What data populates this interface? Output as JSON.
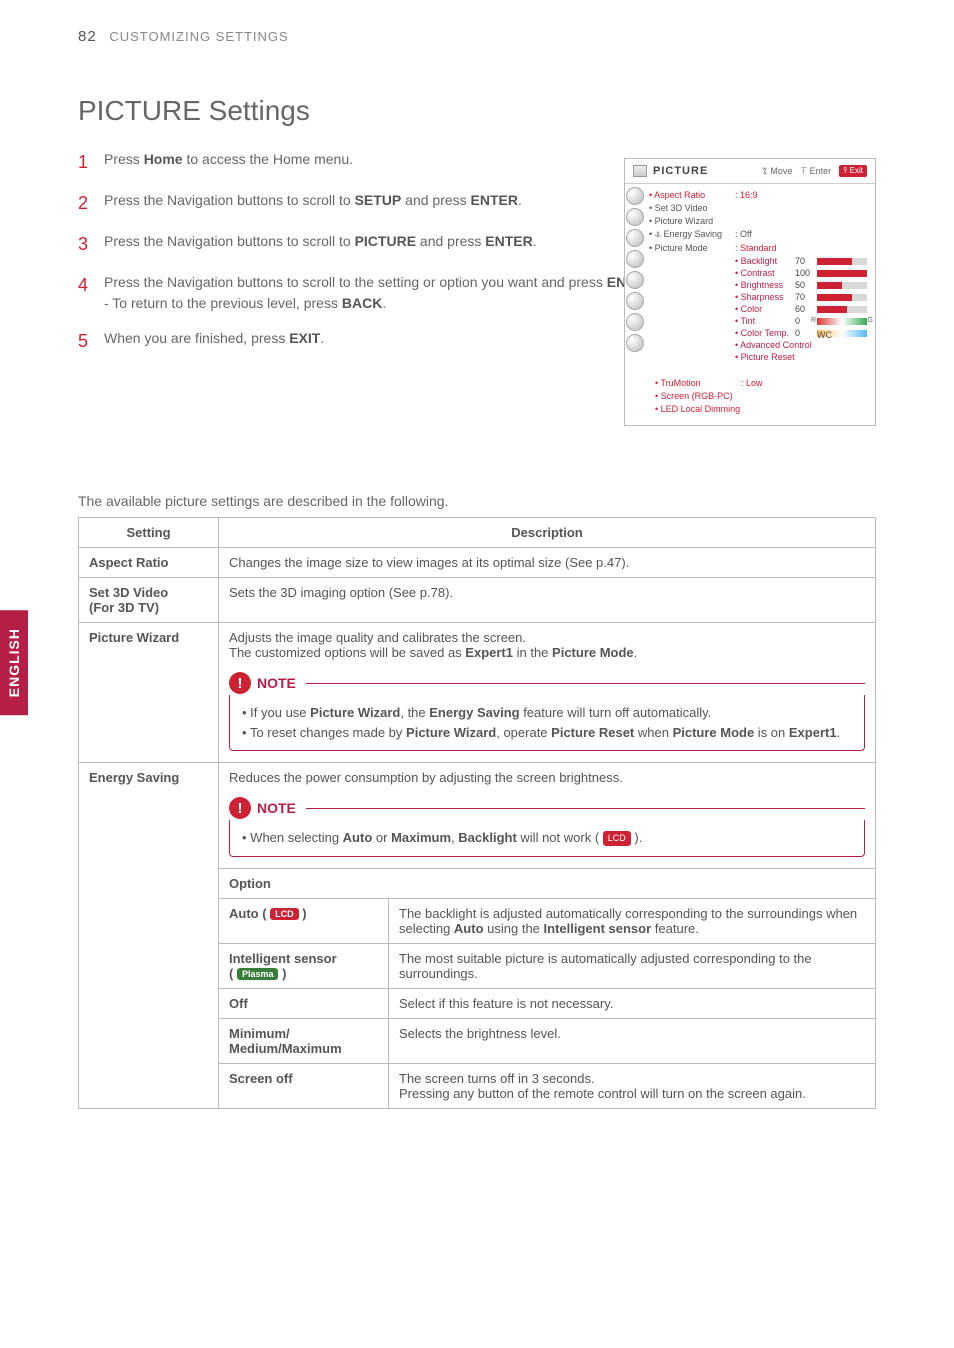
{
  "sideTab": "ENGLISH",
  "header": {
    "pageNum": "82",
    "section": "CUSTOMIZING SETTINGS"
  },
  "title": "PICTURE Settings",
  "noteLabel": "NOTE",
  "badges": {
    "lcd": "LCD",
    "plasma": "Plasma"
  },
  "steps": [
    {
      "num": "1",
      "k1": "Home"
    },
    {
      "num": "2",
      "k1": "SETUP",
      "k2": "ENTER"
    },
    {
      "num": "3",
      "k1": "PICTURE",
      "k2": "ENTER"
    },
    {
      "num": "4",
      "k1": "ENTER",
      "k2": "BACK"
    },
    {
      "num": "5",
      "k1": "EXIT"
    }
  ],
  "osd": {
    "title": "PICTURE",
    "hints": {
      "move": "ꔂ Move",
      "enter": "ꔉ Enter",
      "exit": "ꕉ Exit"
    },
    "items": [
      {
        "label": "• Aspect Ratio",
        "val": ": 16:9"
      },
      {
        "label": "• Set 3D Video"
      },
      {
        "label": "• Picture Wizard"
      },
      {
        "label": "• ꕊ Energy Saving",
        "val": ": Off"
      },
      {
        "label": "• Picture Mode",
        "val": ": Standard"
      }
    ],
    "sliders": [
      {
        "label": "• Backlight",
        "val": "70"
      },
      {
        "label": "• Contrast",
        "val": "100"
      },
      {
        "label": "• Brightness",
        "val": "50"
      },
      {
        "label": "• Sharpness",
        "val": "70"
      },
      {
        "label": "• Color",
        "val": "60"
      },
      {
        "label": "• Tint",
        "val": "0"
      },
      {
        "label": "• Color Temp.",
        "val": "0"
      }
    ],
    "extra": [
      "• Advanced Control",
      "• Picture Reset"
    ],
    "bottom": [
      {
        "label": "• TruMotion",
        "val": ": Low"
      },
      {
        "label": "• Screen (RGB-PC)"
      },
      {
        "label": "• LED Local Dimming"
      }
    ]
  },
  "tableIntro": "The available picture settings are described in the following.",
  "table": {
    "headers": [
      "Setting",
      "Description"
    ],
    "rows": {
      "aspect": {
        "name": "Aspect Ratio",
        "desc": "Changes the image size to view images at its optimal size (See p.47)."
      },
      "set3d": {
        "name": "Set 3D Video",
        "sub": "(For 3D TV)",
        "desc": "Sets the 3D imaging option (See p.78)."
      },
      "wizard": {
        "name": "Picture Wizard",
        "line1": "Adjusts the image quality and calibrates the screen.",
        "expert": "Expert1",
        "pm": "Picture Mode",
        "reset": "Picture Reset"
      },
      "energy": {
        "name": "Energy Saving",
        "desc": "Reduces the power consumption by adjusting the screen brightness.",
        "backlight": "Backlight",
        "optionHeading": "Option",
        "opts": {
          "auto": {
            "short": "Auto"
          },
          "max": "Maximum",
          "sensor": {
            "name": "Intelligent sensor",
            "desc": "The most suitable picture is automatically adjusted corresponding to the surroundings."
          },
          "off": {
            "name": "Off",
            "desc": "Select if this feature is not necessary."
          },
          "levels": {
            "name": "Minimum/ Medium/Maximum",
            "desc": "Selects the brightness level."
          },
          "screenOff": {
            "name": "Screen off",
            "line1": "The screen turns off in 3 seconds.",
            "line2": "Pressing any button of the remote control will turn on the screen again."
          }
        }
      }
    }
  }
}
